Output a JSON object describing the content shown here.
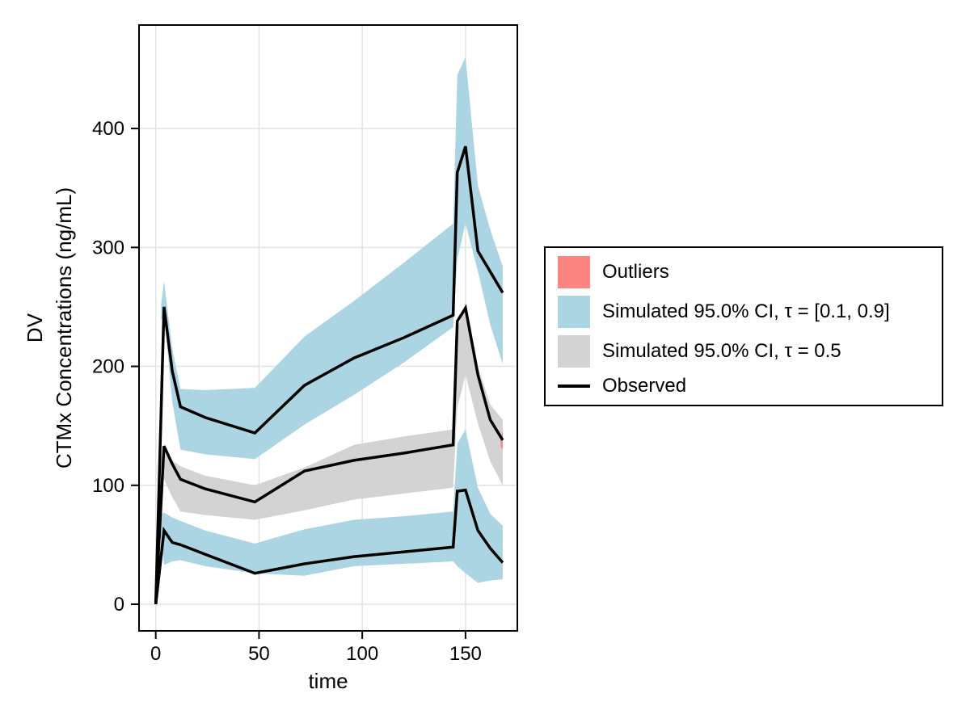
{
  "chart_data": {
    "type": "area",
    "title": "",
    "xlabel": "time",
    "ylabel_line1": "DV",
    "ylabel_line2": "CTMx Concentrations (ng/mL)",
    "xlim": [
      -8.1,
      175.1
    ],
    "ylim": [
      -22.4,
      487
    ],
    "x_ticks": [
      0,
      50,
      100,
      150
    ],
    "y_ticks": [
      0,
      100,
      200,
      300,
      400
    ],
    "grid": true,
    "grid_color": "#e3e3e3",
    "frame_color": "#000000",
    "bands": [
      {
        "name": "Simulated 95.0% CI, τ = [0.1, 0.9]",
        "color": "#acd5e3",
        "segments": [
          [
            [
              2.6,
              238,
              252
            ],
            [
              4,
              245,
              272
            ],
            [
              8,
              170,
              215
            ],
            [
              12,
              130,
              181
            ],
            [
              24,
              126,
              180
            ],
            [
              48,
              122,
              182
            ],
            [
              72,
              151,
              225
            ],
            [
              96,
              176,
              255
            ],
            [
              120,
              203,
              287
            ],
            [
              144,
              233,
              320
            ],
            [
              146,
              290,
              445
            ],
            [
              150,
              320,
              460
            ],
            [
              156,
              280,
              352
            ],
            [
              162,
              235,
              315
            ],
            [
              168,
              202,
              284
            ]
          ],
          [
            [
              1.7,
              70,
              75
            ],
            [
              4,
              33,
              77
            ],
            [
              8,
              36,
              73
            ],
            [
              12,
              37,
              70
            ],
            [
              24,
              32,
              62
            ],
            [
              48,
              26,
              51
            ],
            [
              72,
              24,
              63
            ],
            [
              96,
              32,
              71
            ],
            [
              120,
              34,
              74
            ],
            [
              144,
              36,
              78
            ],
            [
              146,
              32,
              135
            ],
            [
              150,
              26,
              147
            ],
            [
              156,
              18,
              98
            ],
            [
              162,
              20,
              76
            ],
            [
              168,
              21,
              66
            ]
          ]
        ]
      },
      {
        "name": "Simulated 95.0% CI, τ = 0.5",
        "color": "#d3d3d3",
        "segments": [
          [
            [
              2.1,
              116,
              121
            ],
            [
              4,
              105,
              128
            ],
            [
              8,
              90,
              121
            ],
            [
              12,
              78,
              116
            ],
            [
              24,
              75,
              108
            ],
            [
              48,
              71,
              100
            ],
            [
              72,
              79,
              115
            ],
            [
              96,
              88,
              134
            ],
            [
              120,
              93,
              141
            ],
            [
              144,
              98,
              147
            ],
            [
              146,
              165,
              230
            ],
            [
              150,
              193,
              254
            ],
            [
              156,
              152,
              200
            ],
            [
              162,
              120,
              168
            ],
            [
              168,
              100,
              155
            ]
          ]
        ]
      },
      {
        "name": "Outliers",
        "color": "#fc8581",
        "segments": [
          [
            [
              167.0,
              133,
              139
            ],
            [
              168,
              130,
              146
            ]
          ]
        ]
      }
    ],
    "observed": {
      "name": "Observed",
      "color": "#000000",
      "lines": [
        [
          [
            0,
            0
          ],
          [
            4,
            250
          ],
          [
            8,
            196
          ],
          [
            12,
            166
          ],
          [
            24,
            157
          ],
          [
            48,
            144
          ],
          [
            72,
            184
          ],
          [
            96,
            207
          ],
          [
            120,
            224
          ],
          [
            144,
            243
          ],
          [
            146,
            363
          ],
          [
            150,
            385
          ],
          [
            156,
            297
          ],
          [
            168,
            262
          ]
        ],
        [
          [
            0,
            0
          ],
          [
            4,
            133
          ],
          [
            8,
            118
          ],
          [
            12,
            105
          ],
          [
            24,
            97
          ],
          [
            48,
            86
          ],
          [
            72,
            112
          ],
          [
            96,
            121
          ],
          [
            120,
            127
          ],
          [
            144,
            134
          ],
          [
            146,
            238
          ],
          [
            150,
            249
          ],
          [
            156,
            193
          ],
          [
            162,
            155
          ],
          [
            168,
            138
          ]
        ],
        [
          [
            0,
            0
          ],
          [
            4,
            62
          ],
          [
            8,
            52
          ],
          [
            12,
            50
          ],
          [
            24,
            42
          ],
          [
            48,
            26
          ],
          [
            72,
            34
          ],
          [
            96,
            40
          ],
          [
            120,
            44
          ],
          [
            144,
            48
          ],
          [
            146,
            95
          ],
          [
            150,
            96
          ],
          [
            156,
            62
          ],
          [
            162,
            47
          ],
          [
            168,
            35
          ]
        ]
      ]
    },
    "legend": {
      "entries": [
        {
          "label": "Outliers",
          "swatch": "rect",
          "color": "#fc8581"
        },
        {
          "label": "Simulated 95.0% CI, τ = [0.1, 0.9]",
          "swatch": "rect",
          "color": "#acd5e3"
        },
        {
          "label": "Simulated 95.0% CI, τ = 0.5",
          "swatch": "rect",
          "color": "#d3d3d3"
        },
        {
          "label": "Observed",
          "swatch": "line",
          "color": "#000000"
        }
      ]
    }
  }
}
